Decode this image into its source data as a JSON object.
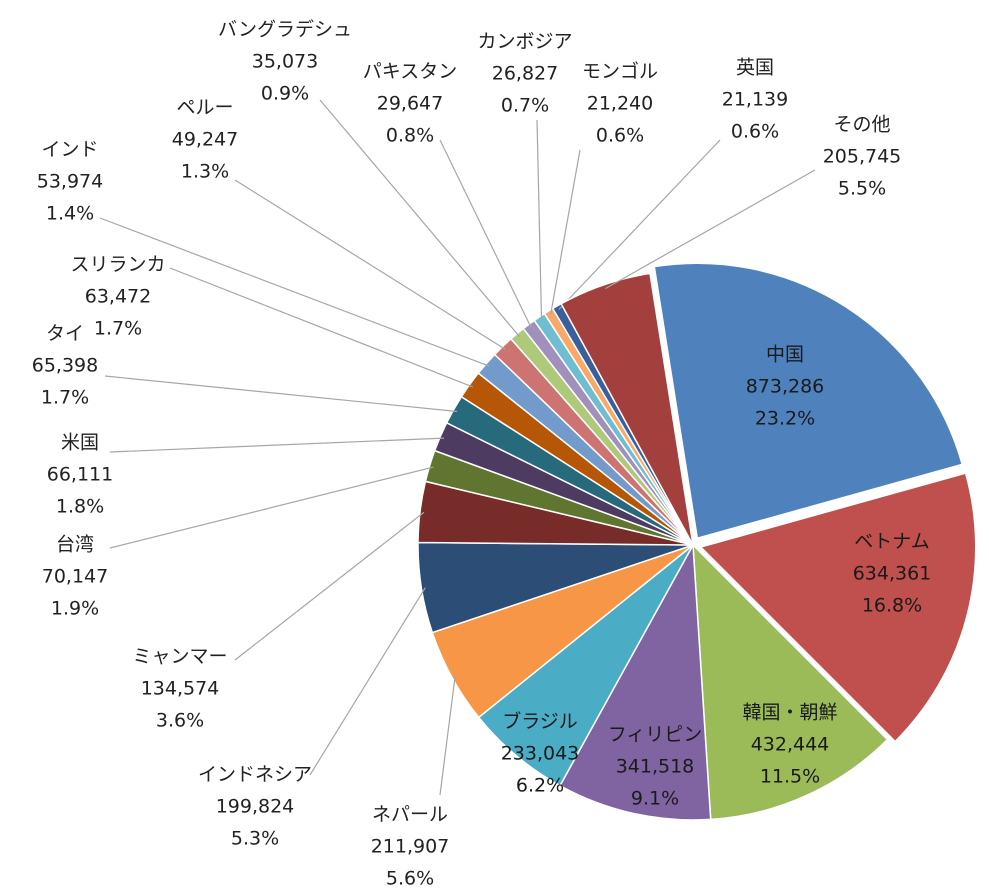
{
  "chart_data": {
    "type": "pie",
    "categories": [
      "中国",
      "ベトナム",
      "韓国・朝鮮",
      "フィリピン",
      "ブラジル",
      "ネパール",
      "インドネシア",
      "ミャンマー",
      "台湾",
      "米国",
      "タイ",
      "スリランカ",
      "インド",
      "ペルー",
      "バングラデシュ",
      "パキスタン",
      "カンボジア",
      "モンゴル",
      "英国",
      "その他"
    ],
    "values": [
      873286,
      634361,
      432444,
      341518,
      233043,
      211907,
      199824,
      134574,
      70147,
      66111,
      65398,
      63472,
      53974,
      49247,
      35073,
      29647,
      26827,
      21240,
      21139,
      205745
    ],
    "value_labels": [
      "873,286",
      "634,361",
      "432,444",
      "341,518",
      "233,043",
      "211,907",
      "199,824",
      "134,574",
      "70,147",
      "66,111",
      "65,398",
      "63,472",
      "53,974",
      "49,247",
      "35,073",
      "29,647",
      "26,827",
      "21,240",
      "21,139",
      "205,745"
    ],
    "percent_labels": [
      "23.2%",
      "16.8%",
      "11.5%",
      "9.1%",
      "6.2%",
      "5.6%",
      "5.3%",
      "3.6%",
      "1.9%",
      "1.8%",
      "1.7%",
      "1.7%",
      "1.4%",
      "1.3%",
      "0.9%",
      "0.8%",
      "0.7%",
      "0.6%",
      "0.6%",
      "5.5%"
    ],
    "colors": [
      "#4f81bd",
      "#c0504d",
      "#9bbb59",
      "#8064a2",
      "#4bacc6",
      "#f79646",
      "#2c4d75",
      "#772c2a",
      "#5f7530",
      "#4d3b62",
      "#276a7c",
      "#b65708",
      "#729aca",
      "#cd7371",
      "#afc97a",
      "#a18fbc",
      "#6fbdd1",
      "#f9a867",
      "#3a5f9c",
      "#a33f3c"
    ]
  }
}
